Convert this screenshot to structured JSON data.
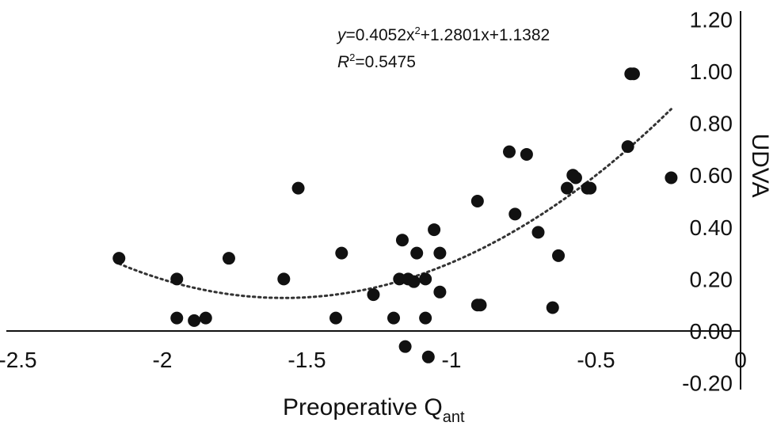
{
  "chart_data": {
    "type": "scatter",
    "title": "",
    "xlabel": "Preoperative Q",
    "xlabel_sub": "ant",
    "ylabel": "UDVA",
    "xlim": [
      -2.5,
      0
    ],
    "ylim": [
      -0.2,
      1.2
    ],
    "x_ticks": [
      "-2.5",
      "-2",
      "-1.5",
      "-1",
      "-0.5",
      "0"
    ],
    "y_ticks": [
      "-0.20",
      "0.00",
      "0.20",
      "0.40",
      "0.60",
      "0.80",
      "1.00",
      "1.20"
    ],
    "y_axis_side": "right",
    "grid": false,
    "legend": "none",
    "trendline": {
      "type": "polynomial",
      "order": 2,
      "coefficients": [
        0.4052,
        1.2801,
        1.1382
      ],
      "x_range": [
        -2.15,
        -0.24
      ],
      "style": "dotted"
    },
    "annotations": {
      "equation": {
        "var": "y",
        "text": "=0.4052x",
        "sup": "2",
        "rest": "+1.2801x+1.1382"
      },
      "r_squared": {
        "var": "R",
        "sup": "2",
        "text": "=0.5475"
      }
    },
    "points": [
      {
        "x": -2.15,
        "y": 0.28
      },
      {
        "x": -1.95,
        "y": 0.2
      },
      {
        "x": -1.95,
        "y": 0.05
      },
      {
        "x": -1.89,
        "y": 0.04
      },
      {
        "x": -1.85,
        "y": 0.05
      },
      {
        "x": -1.77,
        "y": 0.28
      },
      {
        "x": -1.58,
        "y": 0.2
      },
      {
        "x": -1.53,
        "y": 0.55
      },
      {
        "x": -1.4,
        "y": 0.05
      },
      {
        "x": -1.38,
        "y": 0.3
      },
      {
        "x": -1.27,
        "y": 0.14
      },
      {
        "x": -1.2,
        "y": 0.05
      },
      {
        "x": -1.18,
        "y": 0.2
      },
      {
        "x": -1.17,
        "y": 0.35
      },
      {
        "x": -1.16,
        "y": -0.06
      },
      {
        "x": -1.15,
        "y": 0.2
      },
      {
        "x": -1.13,
        "y": 0.19
      },
      {
        "x": -1.12,
        "y": 0.3
      },
      {
        "x": -1.09,
        "y": 0.2
      },
      {
        "x": -1.09,
        "y": 0.05
      },
      {
        "x": -1.08,
        "y": -0.1
      },
      {
        "x": -1.06,
        "y": 0.39
      },
      {
        "x": -1.04,
        "y": 0.3
      },
      {
        "x": -1.04,
        "y": 0.15
      },
      {
        "x": -0.91,
        "y": 0.5
      },
      {
        "x": -0.91,
        "y": 0.1
      },
      {
        "x": -0.9,
        "y": 0.1
      },
      {
        "x": -0.8,
        "y": 0.69
      },
      {
        "x": -0.78,
        "y": 0.45
      },
      {
        "x": -0.74,
        "y": 0.68
      },
      {
        "x": -0.7,
        "y": 0.38
      },
      {
        "x": -0.65,
        "y": 0.09
      },
      {
        "x": -0.63,
        "y": 0.29
      },
      {
        "x": -0.6,
        "y": 0.55
      },
      {
        "x": -0.58,
        "y": 0.6
      },
      {
        "x": -0.57,
        "y": 0.59
      },
      {
        "x": -0.53,
        "y": 0.55
      },
      {
        "x": -0.52,
        "y": 0.55
      },
      {
        "x": -0.39,
        "y": 0.71
      },
      {
        "x": -0.38,
        "y": 0.99
      },
      {
        "x": -0.37,
        "y": 0.99
      },
      {
        "x": -0.24,
        "y": 0.59
      }
    ]
  }
}
